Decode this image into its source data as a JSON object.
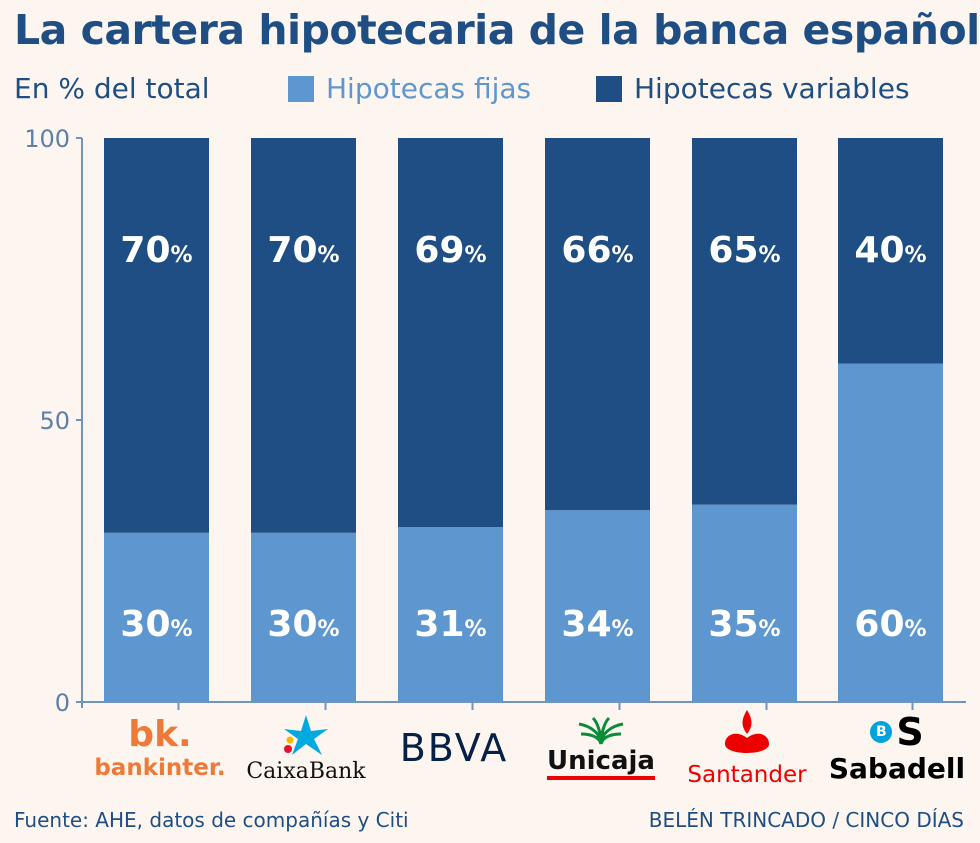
{
  "title": "La cartera hipotecaria de la banca española",
  "subtitle": "En % del total",
  "footer": {
    "source": "Fuente: AHE, datos de compañías y Citi",
    "credit": "BELÉN TRINCADO / CINCO DÍAS"
  },
  "colors": {
    "fixed": "#5e97d0",
    "variable": "#1f4e84",
    "background": "#fdf6f0"
  },
  "logos": {
    "bankinter_mark": "bk.",
    "bankinter": "bankinter.",
    "caixabank": "CaixaBank",
    "bbva": "BBVA",
    "unicaja": "Unicaja",
    "santander": "Santander",
    "sabadell_mark": "B",
    "sabadell_s": "S",
    "sabadell": "Sabadell"
  },
  "chart_data": {
    "type": "bar",
    "stacked": true,
    "categories": [
      "bankinter.",
      "CaixaBank",
      "BBVA",
      "Unicaja",
      "Santander",
      "Sabadell"
    ],
    "series": [
      {
        "name": "Hipotecas fijas",
        "values": [
          30,
          30,
          31,
          34,
          35,
          60
        ],
        "labels": [
          "30",
          "30",
          "31",
          "34",
          "35",
          "60"
        ]
      },
      {
        "name": "Hipotecas variables",
        "values": [
          70,
          70,
          69,
          66,
          65,
          40
        ],
        "labels": [
          "70",
          "70",
          "69",
          "66",
          "65",
          "40"
        ]
      }
    ],
    "unit_suffix": "%",
    "ylim": [
      0,
      100
    ],
    "yticks": [
      "0",
      "50",
      "100"
    ],
    "grid": false,
    "legend_position": "top"
  }
}
